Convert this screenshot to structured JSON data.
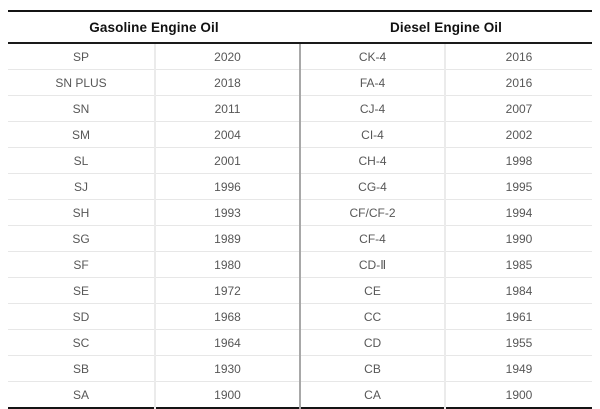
{
  "table": {
    "header": {
      "gasoline_title": "Gasoline Engine Oil",
      "diesel_title": "Diesel Engine Oil"
    },
    "rows": [
      {
        "gasoline_grade": "SP",
        "gasoline_year": "2020",
        "diesel_grade": "CK-4",
        "diesel_year": "2016"
      },
      {
        "gasoline_grade": "SN PLUS",
        "gasoline_year": "2018",
        "diesel_grade": "FA-4",
        "diesel_year": "2016"
      },
      {
        "gasoline_grade": "SN",
        "gasoline_year": "2011",
        "diesel_grade": "CJ-4",
        "diesel_year": "2007"
      },
      {
        "gasoline_grade": "SM",
        "gasoline_year": "2004",
        "diesel_grade": "CI-4",
        "diesel_year": "2002"
      },
      {
        "gasoline_grade": "SL",
        "gasoline_year": "2001",
        "diesel_grade": "CH-4",
        "diesel_year": "1998"
      },
      {
        "gasoline_grade": "SJ",
        "gasoline_year": "1996",
        "diesel_grade": "CG-4",
        "diesel_year": "1995"
      },
      {
        "gasoline_grade": "SH",
        "gasoline_year": "1993",
        "diesel_grade": "CF/CF-2",
        "diesel_year": "1994"
      },
      {
        "gasoline_grade": "SG",
        "gasoline_year": "1989",
        "diesel_grade": "CF-4",
        "diesel_year": "1990"
      },
      {
        "gasoline_grade": "SF",
        "gasoline_year": "1980",
        "diesel_grade": "CD-Ⅱ",
        "diesel_year": "1985"
      },
      {
        "gasoline_grade": "SE",
        "gasoline_year": "1972",
        "diesel_grade": "CE",
        "diesel_year": "1984"
      },
      {
        "gasoline_grade": "SD",
        "gasoline_year": "1968",
        "diesel_grade": "CC",
        "diesel_year": "1961"
      },
      {
        "gasoline_grade": "SC",
        "gasoline_year": "1964",
        "diesel_grade": "CD",
        "diesel_year": "1955"
      },
      {
        "gasoline_grade": "SB",
        "gasoline_year": "1930",
        "diesel_grade": "CB",
        "diesel_year": "1949"
      },
      {
        "gasoline_grade": "SA",
        "gasoline_year": "1900",
        "diesel_grade": "CA",
        "diesel_year": "1900"
      }
    ]
  },
  "colors": {
    "header_text": "#111111",
    "cell_text": "#575757",
    "heavy_border": "#141414",
    "light_border": "#e7e7e7",
    "section_divider": "#a8a8a8"
  }
}
